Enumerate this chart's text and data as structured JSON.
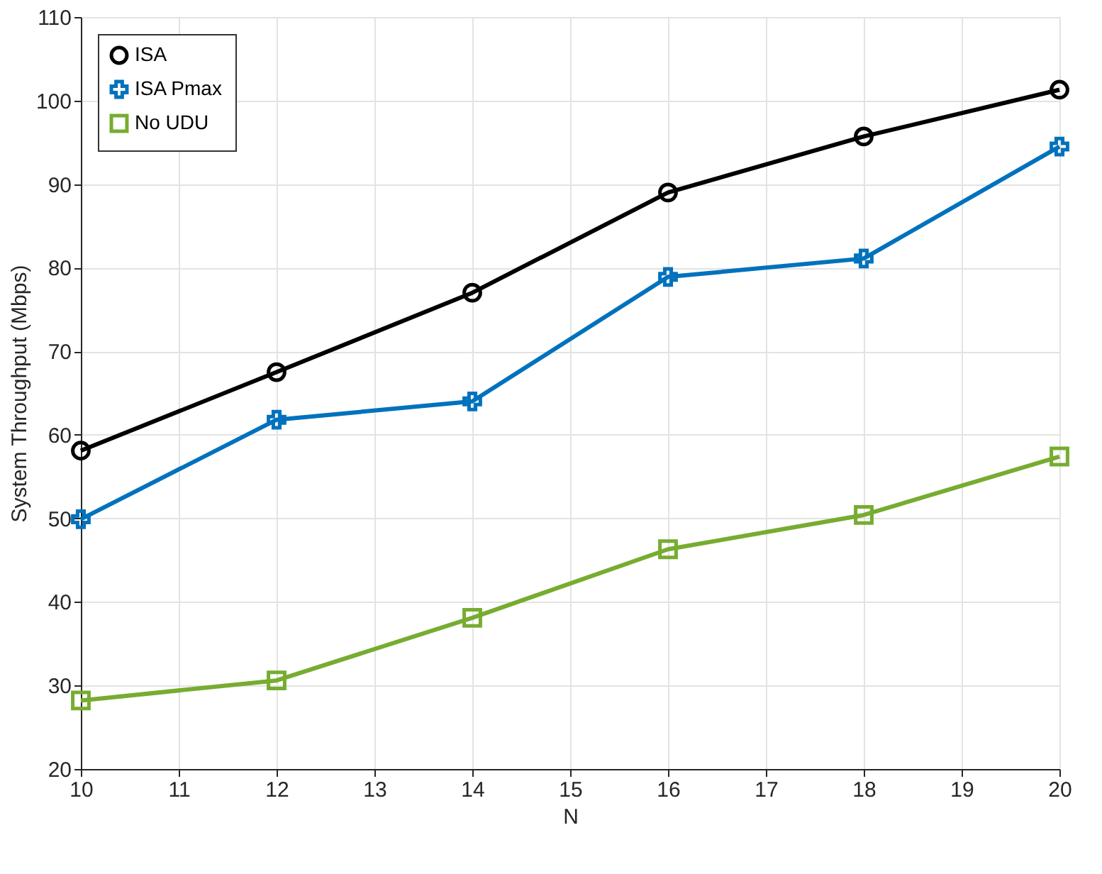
{
  "chart_data": {
    "type": "line",
    "xlabel": "N",
    "ylabel": "System Throughput (Mbps)",
    "x": [
      10,
      12,
      14,
      16,
      18,
      20
    ],
    "series": [
      {
        "name": "ISA",
        "color": "#000000",
        "marker": "circle",
        "values": [
          58.1,
          67.5,
          77.0,
          89.0,
          95.7,
          101.3
        ]
      },
      {
        "name": "ISA Pmax",
        "color": "#0072bd",
        "marker": "cross",
        "values": [
          49.9,
          61.8,
          64.0,
          78.9,
          81.1,
          94.5
        ]
      },
      {
        "name": "No UDU",
        "color": "#77ac30",
        "marker": "square",
        "values": [
          28.2,
          30.6,
          38.1,
          46.3,
          50.4,
          57.4
        ]
      }
    ],
    "xlim": [
      10,
      20
    ],
    "xticks": [
      10,
      11,
      12,
      13,
      14,
      15,
      16,
      17,
      18,
      19,
      20
    ],
    "ylim": [
      20,
      110
    ],
    "yticks": [
      20,
      30,
      40,
      50,
      60,
      70,
      80,
      90,
      100,
      110
    ],
    "grid": true,
    "legend": "top left",
    "line_style": "solid"
  }
}
